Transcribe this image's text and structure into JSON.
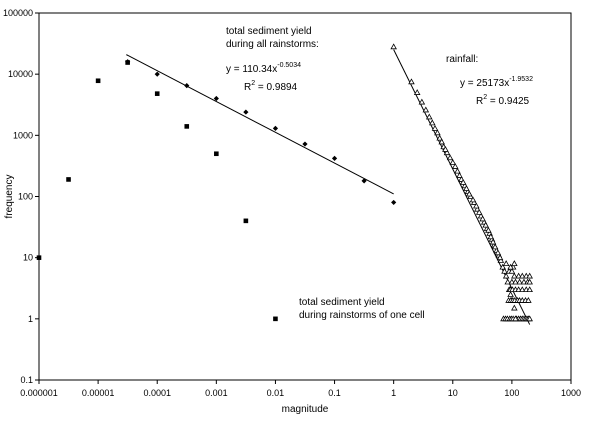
{
  "chart_data": {
    "type": "scatter",
    "xscale": "log",
    "yscale": "log",
    "xlim": [
      1e-06,
      1000
    ],
    "ylim": [
      0.1,
      100000
    ],
    "grid": false,
    "xlabel": "magnitude",
    "ylabel": "frequency",
    "x_ticks": [
      "0.000001",
      "0.00001",
      "0.0001",
      "0.001",
      "0.01",
      "0.1",
      "1",
      "10",
      "100",
      "1000"
    ],
    "y_ticks": [
      "0.1",
      "1",
      "10",
      "100",
      "1000",
      "10000",
      "100000"
    ],
    "series": [
      {
        "marker": "diamond",
        "points": [
          [
            3.16e-05,
            16000
          ],
          [
            0.0001,
            10000
          ],
          [
            0.000316,
            6500
          ],
          [
            0.001,
            4000
          ],
          [
            0.00316,
            2400
          ],
          [
            0.01,
            1300
          ],
          [
            0.0316,
            720
          ],
          [
            0.1,
            420
          ],
          [
            0.316,
            180
          ],
          [
            1,
            80
          ]
        ]
      },
      {
        "marker": "square",
        "points": [
          [
            1e-06,
            10
          ],
          [
            3.16e-06,
            190
          ],
          [
            1e-05,
            7800
          ],
          [
            3.16e-05,
            15500
          ],
          [
            0.0001,
            4800
          ],
          [
            0.000316,
            1400
          ],
          [
            0.001,
            500
          ],
          [
            0.00316,
            40
          ],
          [
            0.01,
            1
          ]
        ]
      },
      {
        "marker": "triangle",
        "points": [
          [
            1,
            28000
          ],
          [
            2,
            7500
          ],
          [
            3,
            3500
          ],
          [
            4,
            2000
          ],
          [
            5,
            1300
          ],
          [
            6,
            900
          ],
          [
            7,
            650
          ],
          [
            8,
            520
          ],
          [
            9,
            430
          ],
          [
            10,
            360
          ],
          [
            12,
            260
          ],
          [
            14,
            190
          ],
          [
            16,
            150
          ],
          [
            18,
            120
          ],
          [
            20,
            100
          ],
          [
            23,
            80
          ],
          [
            26,
            62
          ],
          [
            30,
            48
          ],
          [
            34,
            38
          ],
          [
            38,
            30
          ],
          [
            42,
            25
          ],
          [
            46,
            20
          ],
          [
            50,
            16
          ],
          [
            55,
            13
          ],
          [
            60,
            11
          ],
          [
            65,
            9
          ],
          [
            70,
            7
          ],
          [
            75,
            6
          ],
          [
            80,
            5
          ],
          [
            85,
            4
          ],
          [
            90,
            3
          ],
          [
            95,
            2.5
          ],
          [
            100,
            2
          ],
          [
            110,
            1.5
          ],
          [
            120,
            1
          ],
          [
            130,
            1
          ],
          [
            140,
            1
          ],
          [
            150,
            1
          ],
          [
            160,
            1
          ],
          [
            170,
            1
          ],
          [
            180,
            1
          ],
          [
            190,
            1
          ],
          [
            200,
            1
          ],
          [
            72,
            1
          ],
          [
            78,
            1
          ],
          [
            84,
            1
          ],
          [
            92,
            1
          ],
          [
            98,
            1
          ],
          [
            105,
            1
          ],
          [
            115,
            1
          ],
          [
            88,
            2
          ],
          [
            96,
            2
          ],
          [
            104,
            2
          ],
          [
            112,
            2
          ],
          [
            125,
            2
          ],
          [
            135,
            2
          ],
          [
            150,
            2
          ],
          [
            170,
            2
          ],
          [
            190,
            2
          ],
          [
            94,
            3
          ],
          [
            102,
            3
          ],
          [
            115,
            3
          ],
          [
            130,
            3
          ],
          [
            150,
            3
          ],
          [
            175,
            3
          ],
          [
            200,
            3
          ],
          [
            100,
            4
          ],
          [
            115,
            4
          ],
          [
            135,
            4
          ],
          [
            160,
            4
          ],
          [
            185,
            4
          ],
          [
            200,
            4
          ],
          [
            110,
            5
          ],
          [
            130,
            5
          ],
          [
            150,
            5
          ],
          [
            175,
            5
          ],
          [
            200,
            5
          ],
          [
            90,
            6
          ],
          [
            100,
            6
          ],
          [
            105,
            7
          ],
          [
            95,
            7
          ],
          [
            80,
            8
          ],
          [
            110,
            8
          ],
          [
            2.5,
            5000
          ],
          [
            3.5,
            2600
          ],
          [
            4.5,
            1600
          ],
          [
            5.5,
            1100
          ],
          [
            6.5,
            780
          ],
          [
            7.5,
            590
          ],
          [
            11,
            310
          ],
          [
            13,
            220
          ],
          [
            15,
            170
          ],
          [
            17,
            135
          ],
          [
            19,
            110
          ],
          [
            22,
            88
          ],
          [
            25,
            70
          ],
          [
            28,
            55
          ],
          [
            32,
            43
          ],
          [
            36,
            34
          ],
          [
            40,
            28
          ],
          [
            44,
            22
          ],
          [
            48,
            18
          ],
          [
            52,
            15
          ],
          [
            58,
            12
          ],
          [
            63,
            10
          ]
        ]
      }
    ],
    "trendlines": [
      {
        "equation": "y = 110.34x",
        "exponent": "-0.5034",
        "r2_prefix": "R",
        "r2_sup": "2",
        "r2_value": " = 0.9894",
        "a": 110.34,
        "b": -0.5034,
        "x_range": [
          3e-05,
          1
        ]
      },
      {
        "equation": "y = 25173x",
        "exponent": "-1.9532",
        "r2_prefix": "R",
        "r2_sup": "2",
        "r2_value": " = 0.9425",
        "a": 25173,
        "b": -1.9532,
        "x_range": [
          1,
          200
        ]
      }
    ],
    "annotations": {
      "all_rainstorms": [
        "total sediment yield",
        "during all rainstorms:"
      ],
      "one_cell": [
        "total sediment yield",
        "during rainstorms of one cell"
      ],
      "rainfall": "rainfall:"
    }
  }
}
